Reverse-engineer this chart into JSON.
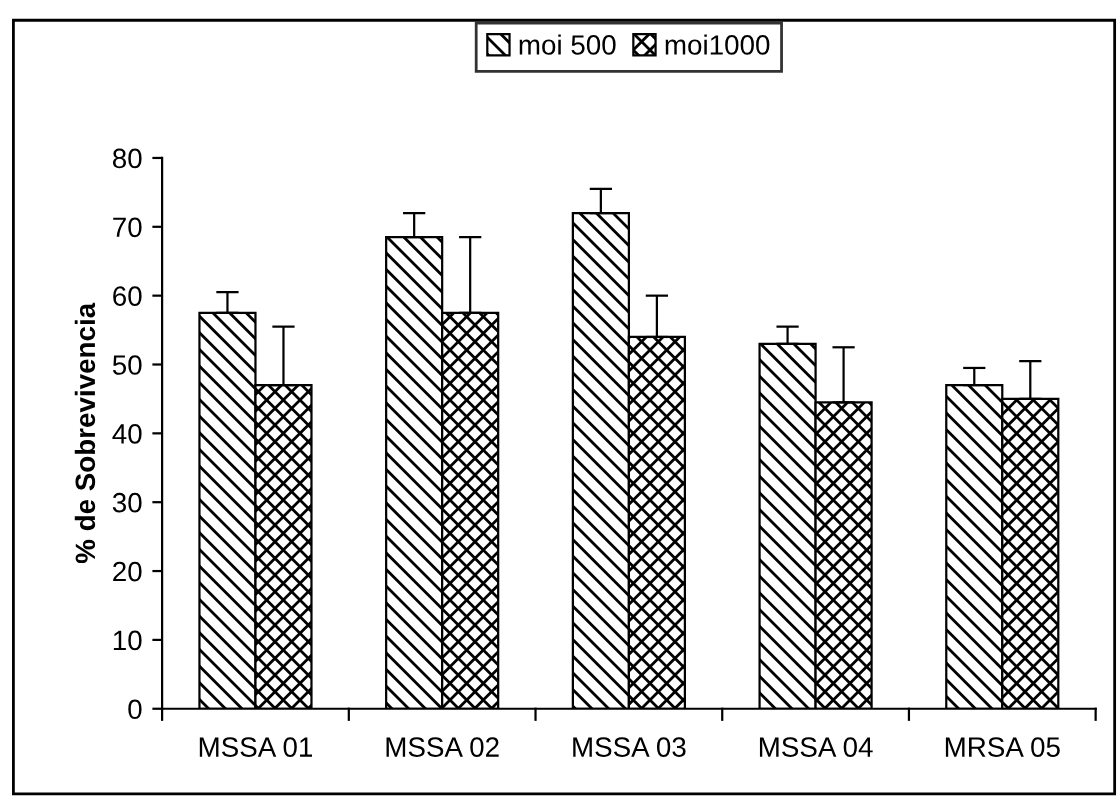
{
  "chart_data": {
    "type": "bar",
    "ylabel": "% de Sobrevivencia",
    "categories": [
      "MSSA 01",
      "MSSA 02",
      "MSSA 03",
      "MSSA 04",
      "MRSA 05"
    ],
    "series": [
      {
        "name": "moi 500",
        "color": "#000000",
        "values": [
          57.5,
          68.5,
          72,
          53,
          47
        ],
        "errors": [
          [
            57.5,
            60.5
          ],
          [
            68.5,
            72
          ],
          [
            72,
            75.5
          ],
          [
            53,
            55.5
          ],
          [
            47,
            49.5
          ]
        ]
      },
      {
        "name": "moi1000",
        "color": "#000000",
        "values": [
          47,
          57.5,
          54,
          44.5,
          45
        ],
        "errors": [
          [
            47,
            55.5
          ],
          [
            57.5,
            68.5
          ],
          [
            54,
            60
          ],
          [
            44.5,
            52.5
          ],
          [
            45,
            50.5
          ]
        ]
      }
    ],
    "ylim": [
      0,
      80
    ],
    "yticks": [
      0,
      10,
      20,
      30,
      40,
      50,
      60,
      70,
      80
    ],
    "grid": false,
    "legend": "top"
  }
}
